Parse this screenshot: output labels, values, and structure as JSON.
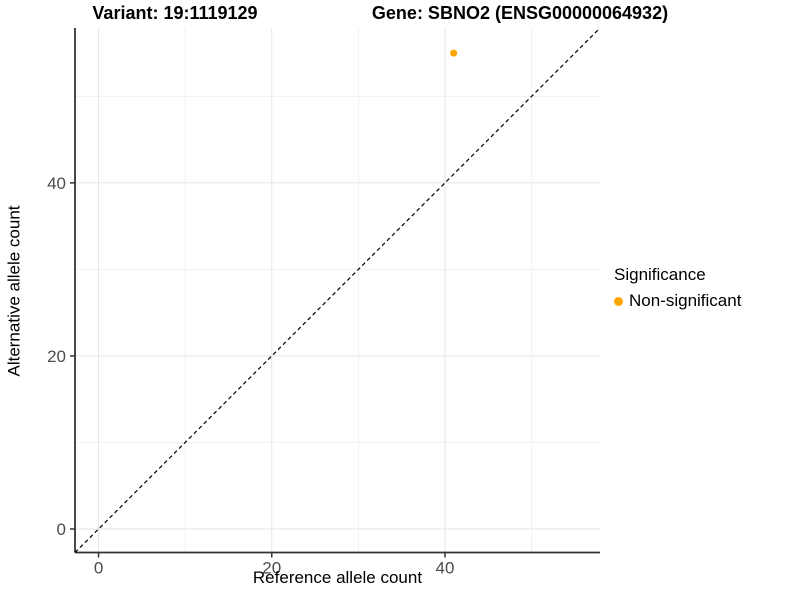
{
  "titles": {
    "variant": "Variant: 19:1119129",
    "gene": "Gene: SBNO2 (ENSG00000064932)"
  },
  "legend": {
    "title": "Significance",
    "items": [
      {
        "label": "Non-significant",
        "color": "#FFA500"
      }
    ]
  },
  "colors": {
    "point": "#FFA500",
    "grid_major": "#E4E4E4",
    "grid_minor": "#F1F1F1",
    "axis_line": "#333333",
    "axis_text": "#4D4D4D",
    "reference_line": "#000000",
    "background": "#FFFFFF"
  },
  "chart_data": {
    "type": "scatter",
    "title": "",
    "xlabel": "Reference allele count",
    "ylabel": "Alternative allele count",
    "xlim": [
      -2.72,
      57.9
    ],
    "ylim": [
      -2.72,
      57.9
    ],
    "xticks": [
      0,
      20,
      40
    ],
    "yticks": [
      0,
      20,
      40
    ],
    "minor_xticks": [
      10,
      30,
      50
    ],
    "minor_yticks": [
      10,
      30,
      50
    ],
    "grid": true,
    "legend_position": "right",
    "series": [
      {
        "name": "Non-significant",
        "color": "#FFA500",
        "points": [
          {
            "x": 41,
            "y": 55
          }
        ]
      }
    ],
    "reference_line": {
      "slope": 1,
      "intercept": 0,
      "linetype": "dashed",
      "color": "#000000"
    }
  }
}
